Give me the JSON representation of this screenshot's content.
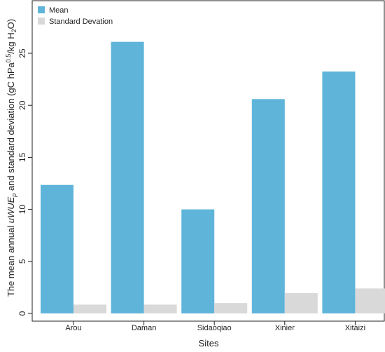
{
  "chart_data": {
    "type": "bar",
    "title": "",
    "xlabel": "Sites",
    "ylabel_parts": {
      "pre": "The mean annual ",
      "var": "uWUE",
      "sub": "p",
      "mid": " and standard deviation (gC hPa",
      "sup": "0.5",
      "post1": "/kg H",
      "sub2": "2",
      "post2": "O)"
    },
    "categories": [
      "Arou",
      "Daman",
      "Sidaoqiao",
      "Xinier",
      "Xitaizi"
    ],
    "series": [
      {
        "name": "Mean",
        "color": "#5fb4d9",
        "values": [
          12.35,
          26.1,
          10.0,
          20.6,
          23.25
        ]
      },
      {
        "name": "Standard Devation",
        "color": "#d9d9d9",
        "values": [
          0.85,
          0.85,
          1.0,
          1.95,
          2.4
        ]
      }
    ],
    "ylim": [
      0,
      28
    ],
    "yticks": [
      0,
      5,
      10,
      15,
      20,
      25
    ],
    "grid": false,
    "legend_position": "top-left"
  }
}
